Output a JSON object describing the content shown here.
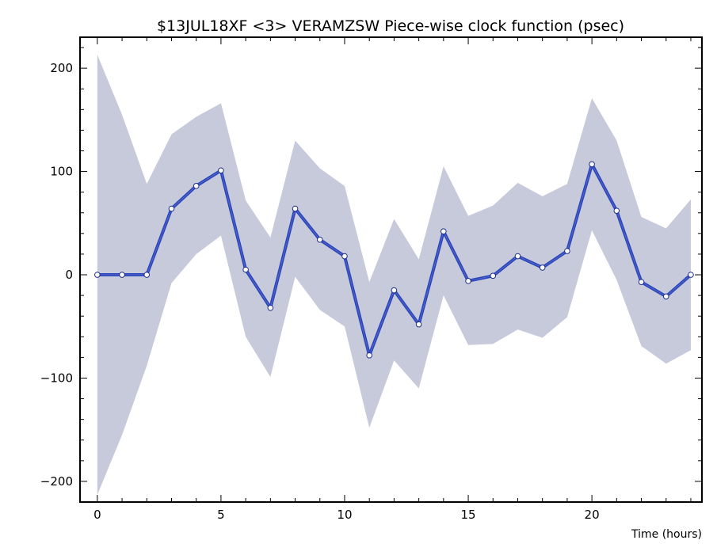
{
  "chart_data": {
    "type": "line",
    "title": "$13JUL18XF <3>  VERAMZSW  Piece-wise clock function (psec)",
    "xlabel": "Time (hours)",
    "ylabel": "",
    "xlim": [
      -0.7,
      24.45
    ],
    "ylim": [
      -220,
      230
    ],
    "x_ticks": [
      0,
      5,
      10,
      15,
      20
    ],
    "y_ticks": [
      -200,
      -100,
      0,
      100,
      200
    ],
    "y_tick_labels": [
      "−200",
      "−100",
      "0",
      "100",
      "200"
    ],
    "x_minor_step": 1,
    "y_minor_step": 20,
    "grid": false,
    "colors": {
      "line": "#2b44b9",
      "band": "#c7cadb",
      "marker_fill": "#ffffff",
      "axis": "#000000"
    },
    "series": [
      {
        "x": [
          0,
          1,
          2,
          3,
          4,
          5,
          6,
          7,
          8,
          9,
          10,
          11,
          12,
          13,
          14,
          15,
          16,
          17,
          18,
          19,
          20,
          21,
          22,
          23,
          24
        ],
        "values": [
          0,
          0,
          0,
          64,
          86,
          101,
          5,
          -32,
          64,
          34,
          18,
          -78,
          -15,
          -48,
          42,
          -6,
          -1,
          18,
          7,
          23,
          107,
          62,
          -7,
          -21,
          0
        ],
        "upper": [
          213,
          155,
          88,
          136,
          153,
          166,
          72,
          36,
          130,
          103,
          86,
          -7,
          54,
          15,
          105,
          57,
          67,
          89,
          76,
          88,
          171,
          130,
          56,
          45,
          73
        ],
        "lower": [
          -213,
          -155,
          -88,
          -8,
          20,
          38,
          -60,
          -99,
          -2,
          -34,
          -50,
          -148,
          -83,
          -110,
          -20,
          -68,
          -67,
          -53,
          -61,
          -41,
          43,
          -5,
          -69,
          -86,
          -73
        ]
      }
    ]
  }
}
